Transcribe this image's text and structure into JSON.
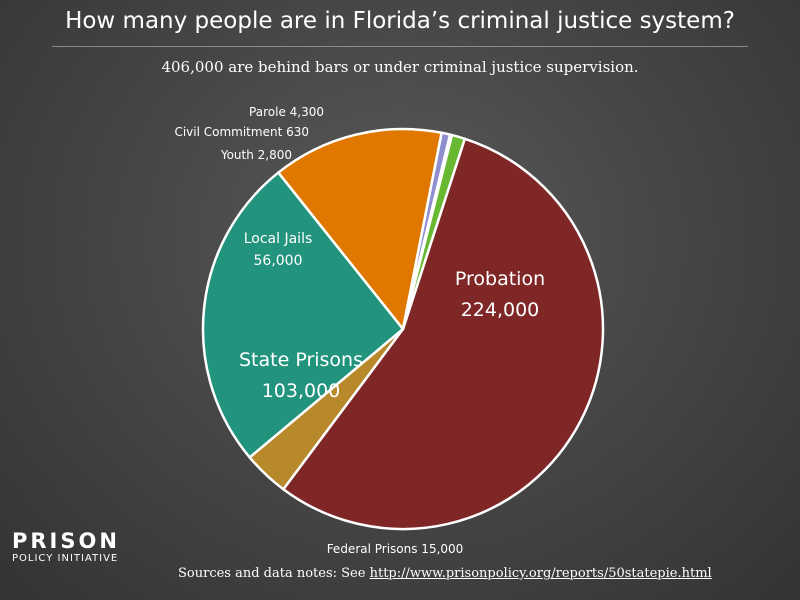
{
  "page": {
    "title": "How many people are in Florida’s criminal justice system?",
    "subtitle": "406,000 are behind bars or under criminal justice supervision.",
    "logo_top": "PRISON",
    "logo_bottom": "POLICY INITIATIVE",
    "sources_prefix": "Sources and data notes: See",
    "sources_link": "http://www.prisonpolicy.org/reports/50statepie.html"
  },
  "chart_data": {
    "type": "pie",
    "title": "How many people are in Florida’s criminal justice system?",
    "subtitle": "406,000 are behind bars or under criminal justice supervision.",
    "slices": [
      {
        "name": "Probation",
        "value": 224000,
        "display": "224,000",
        "color": "#7f2727"
      },
      {
        "name": "Federal Prisons",
        "value": 15000,
        "display": "15,000",
        "color": "#b8892a"
      },
      {
        "name": "State Prisons",
        "value": 103000,
        "display": "103,000",
        "color": "#22937d"
      },
      {
        "name": "Local Jails",
        "value": 56000,
        "display": "56,000",
        "color": "#e07800"
      },
      {
        "name": "Youth",
        "value": 2800,
        "display": "2,800",
        "color": "#8f8ed0"
      },
      {
        "name": "Civil Commitment",
        "value": 630,
        "display": "630",
        "color": "#ffffff"
      },
      {
        "name": "Parole",
        "value": 4300,
        "display": "4,300",
        "color": "#69b832"
      }
    ]
  }
}
